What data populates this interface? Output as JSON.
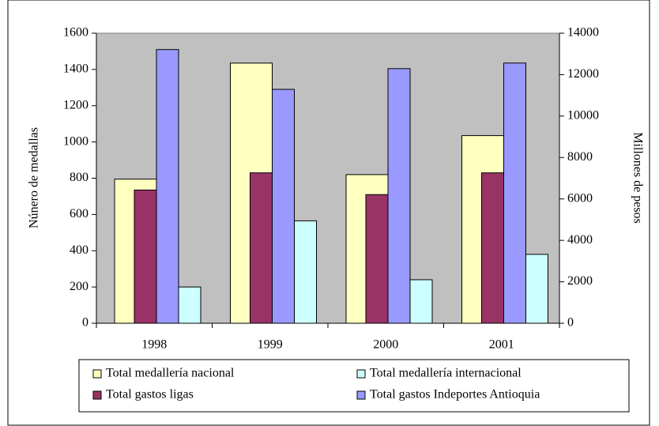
{
  "chart_data": {
    "type": "bar",
    "y_label": "Núnero de medallas",
    "y2_label": "Millones de pesos",
    "categories": [
      "1998",
      "1999",
      "2000",
      "2001"
    ],
    "series": [
      {
        "name": "Total medallería nacional",
        "color": "#ffffc0",
        "values": [
          795,
          1435,
          820,
          1035
        ]
      },
      {
        "name": "Total medallería internacional",
        "color": "#ccffff",
        "values": [
          200,
          565,
          240,
          380
        ]
      },
      {
        "name": "Total gastos ligas",
        "color": "#993366",
        "axis": "y2",
        "values": [
          6430,
          7260,
          6210,
          7260
        ]
      },
      {
        "name": "Total gastos Indeportes Antioquia",
        "color": "#9999ff",
        "axis": "y2",
        "values": [
          13210,
          11290,
          12290,
          12560
        ]
      }
    ],
    "ylim": [
      0,
      1600
    ],
    "yticks": [
      0,
      200,
      400,
      600,
      800,
      1000,
      1200,
      1400,
      1600
    ],
    "y2lim": [
      0,
      14000
    ],
    "y2ticks": [
      0,
      2000,
      4000,
      6000,
      8000,
      10000,
      12000,
      14000
    ],
    "plot_background": "#c0c0c0",
    "legend": "bottom"
  }
}
